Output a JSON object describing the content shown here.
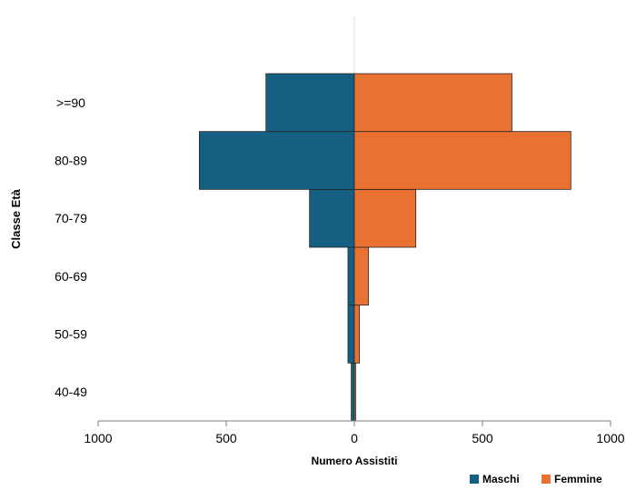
{
  "chart_data": {
    "type": "bar",
    "orientation": "horizontal-population-pyramid",
    "categories": [
      "40-49",
      "50-59",
      "60-69",
      "70-79",
      "80-89",
      ">=90"
    ],
    "series": [
      {
        "name": "Maschi",
        "values": [
          12,
          25,
          25,
          175,
          605,
          345
        ],
        "direction": "left"
      },
      {
        "name": "Femmine",
        "values": [
          5,
          20,
          55,
          240,
          845,
          615
        ],
        "direction": "right"
      }
    ],
    "xlabel": "Numero Assistiti",
    "ylabel": "Classe Età",
    "xlim": [
      -1000,
      1000
    ],
    "xticks": [
      {
        "value": -1000,
        "label": "1000"
      },
      {
        "value": -500,
        "label": "500"
      },
      {
        "value": 0,
        "label": "0"
      },
      {
        "value": 500,
        "label": "500"
      },
      {
        "value": 1000,
        "label": "1000"
      }
    ],
    "grid": false,
    "legend_position": "bottom-right",
    "colors": {
      "Maschi": "#156082",
      "Femmine": "#E97132"
    }
  }
}
